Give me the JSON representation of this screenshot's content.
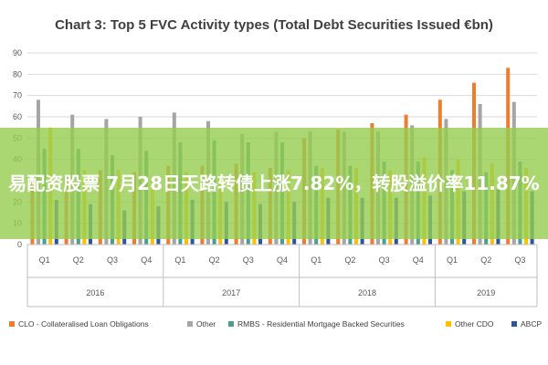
{
  "chart_data": {
    "type": "bar",
    "title": "Chart 3: Top 5 FVC Activity types (Total Debt Securities Issued €bn)",
    "categories": [
      "Q1",
      "Q2",
      "Q3",
      "Q4",
      "Q1",
      "Q2",
      "Q3",
      "Q4",
      "Q1",
      "Q2",
      "Q3",
      "Q4",
      "Q1",
      "Q2",
      "Q3"
    ],
    "groups": [
      {
        "label": "2016",
        "count": 4
      },
      {
        "label": "2017",
        "count": 4
      },
      {
        "label": "2018",
        "count": 4
      },
      {
        "label": "2019",
        "count": 3
      }
    ],
    "ylim": [
      0,
      90
    ],
    "yticks": [
      0,
      10,
      20,
      30,
      40,
      50,
      60,
      70,
      80,
      90
    ],
    "grid": true,
    "legend_position": "bottom",
    "series": [
      {
        "name": "CLO - Collateralised Loan Obligations",
        "color": "#ed7d31",
        "values": [
          30,
          32,
          35,
          34,
          37,
          37,
          38,
          36,
          50,
          54,
          57,
          61,
          68,
          76,
          83
        ]
      },
      {
        "name": "Other",
        "color": "#a5a5a5",
        "values": [
          68,
          61,
          59,
          60,
          62,
          58,
          52,
          53,
          53,
          53,
          53,
          56,
          59,
          66,
          67
        ]
      },
      {
        "name": "RMBS - Residential Mortgage Backed Securities",
        "color": "#4a9d8f",
        "values": [
          45,
          45,
          42,
          44,
          48,
          49,
          48,
          48,
          37,
          37,
          39,
          39,
          35,
          34,
          39
        ]
      },
      {
        "name": "Other CDO",
        "color": "#ffc000",
        "values": [
          55,
          35,
          35,
          32,
          34,
          32,
          34,
          35,
          36,
          36,
          35,
          41,
          40,
          38,
          36
        ]
      },
      {
        "name": "ABCP",
        "color": "#2f5597",
        "values": [
          21,
          19,
          16,
          18,
          21,
          20,
          19,
          20,
          22,
          22,
          22,
          23,
          25,
          26,
          25
        ]
      }
    ]
  },
  "overlay": {
    "text": "易配资股票 7月28日天路转债上涨7.82%，转股溢价率11.87%"
  }
}
